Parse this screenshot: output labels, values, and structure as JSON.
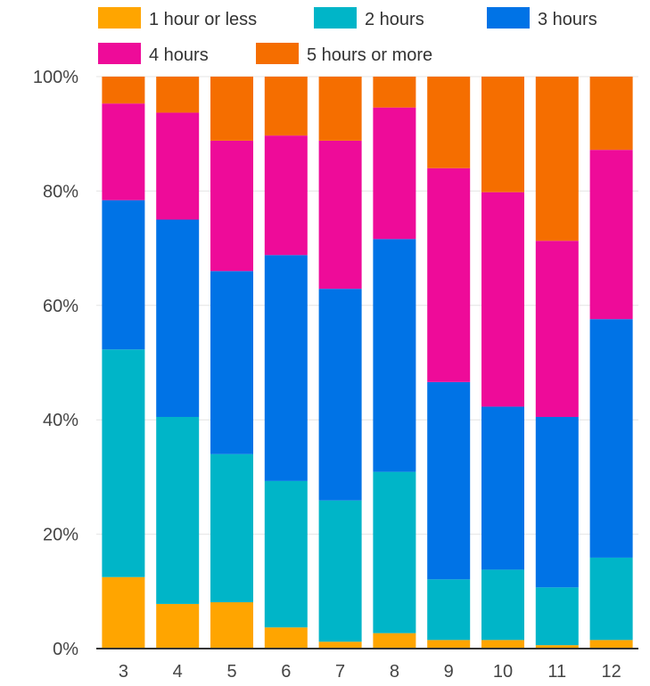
{
  "chart_data": {
    "type": "bar",
    "stacked": true,
    "percent_stacked": true,
    "categories": [
      "3",
      "4",
      "5",
      "6",
      "7",
      "8",
      "9",
      "10",
      "11",
      "12"
    ],
    "series": [
      {
        "name": "1 hour or less",
        "color": "#FFA500",
        "values": [
          12.5,
          7.8,
          8.1,
          3.7,
          1.2,
          2.7,
          1.5,
          1.5,
          0.6,
          1.5
        ]
      },
      {
        "name": "2 hours",
        "color": "#00B5C8",
        "values": [
          39.8,
          32.7,
          25.9,
          25.6,
          24.7,
          28.2,
          10.6,
          12.3,
          10.1,
          14.4
        ]
      },
      {
        "name": "3 hours",
        "color": "#0073E6",
        "values": [
          26.1,
          34.5,
          32.0,
          39.5,
          37.0,
          40.7,
          34.5,
          28.5,
          29.8,
          41.7
        ]
      },
      {
        "name": "4 hours",
        "color": "#EE0B99",
        "values": [
          16.9,
          18.7,
          22.8,
          20.9,
          25.9,
          23.0,
          37.4,
          37.5,
          30.8,
          29.6
        ]
      },
      {
        "name": "5 hours or more",
        "color": "#F56E00",
        "values": [
          4.7,
          6.3,
          11.2,
          10.3,
          11.2,
          5.4,
          16.0,
          20.2,
          28.7,
          12.8
        ]
      }
    ],
    "yticks": [
      "0%",
      "20%",
      "40%",
      "60%",
      "80%",
      "100%"
    ],
    "ylim": [
      0,
      100
    ],
    "xlabel": "",
    "ylabel": "",
    "grid": true,
    "legend_position": "top"
  }
}
